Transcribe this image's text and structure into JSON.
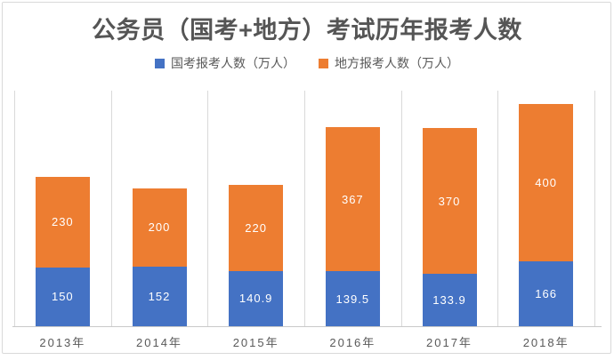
{
  "title": "公务员（国考+地方）考试历年报考人数",
  "legend": {
    "items": [
      {
        "label": "国考报考人数（万人）",
        "color": "#4472C4"
      },
      {
        "label": "地方报考人数（万人）",
        "color": "#ED7D31"
      }
    ]
  },
  "chart_data": {
    "type": "bar",
    "stacked": true,
    "title": "公务员（国考+地方）考试历年报考人数",
    "categories": [
      "2013年",
      "2014年",
      "2015年",
      "2016年",
      "2017年",
      "2018年"
    ],
    "series": [
      {
        "name": "国考报考人数（万人）",
        "color": "#4472C4",
        "values": [
          150,
          152,
          140.9,
          139.5,
          133.9,
          166
        ]
      },
      {
        "name": "地方报考人数（万人）",
        "color": "#ED7D31",
        "values": [
          230,
          200,
          220,
          367,
          370,
          400
        ]
      }
    ],
    "xlabel": "",
    "ylabel": "",
    "ylim": [
      0,
      600
    ],
    "y_axis_visible": false,
    "grid": "vertical category separators only",
    "legend_position": "top center",
    "data_labels": "each segment labeled with its value, white text centered"
  },
  "colors": {
    "national_series": "#4472C4",
    "local_series": "#ED7D31",
    "text": "#595959",
    "title_text": "#555555",
    "gridline": "#D9D9D9",
    "axis_line": "#C9C9C9",
    "background": "#FFFFFF",
    "data_label_text": "#FFFFFF"
  }
}
